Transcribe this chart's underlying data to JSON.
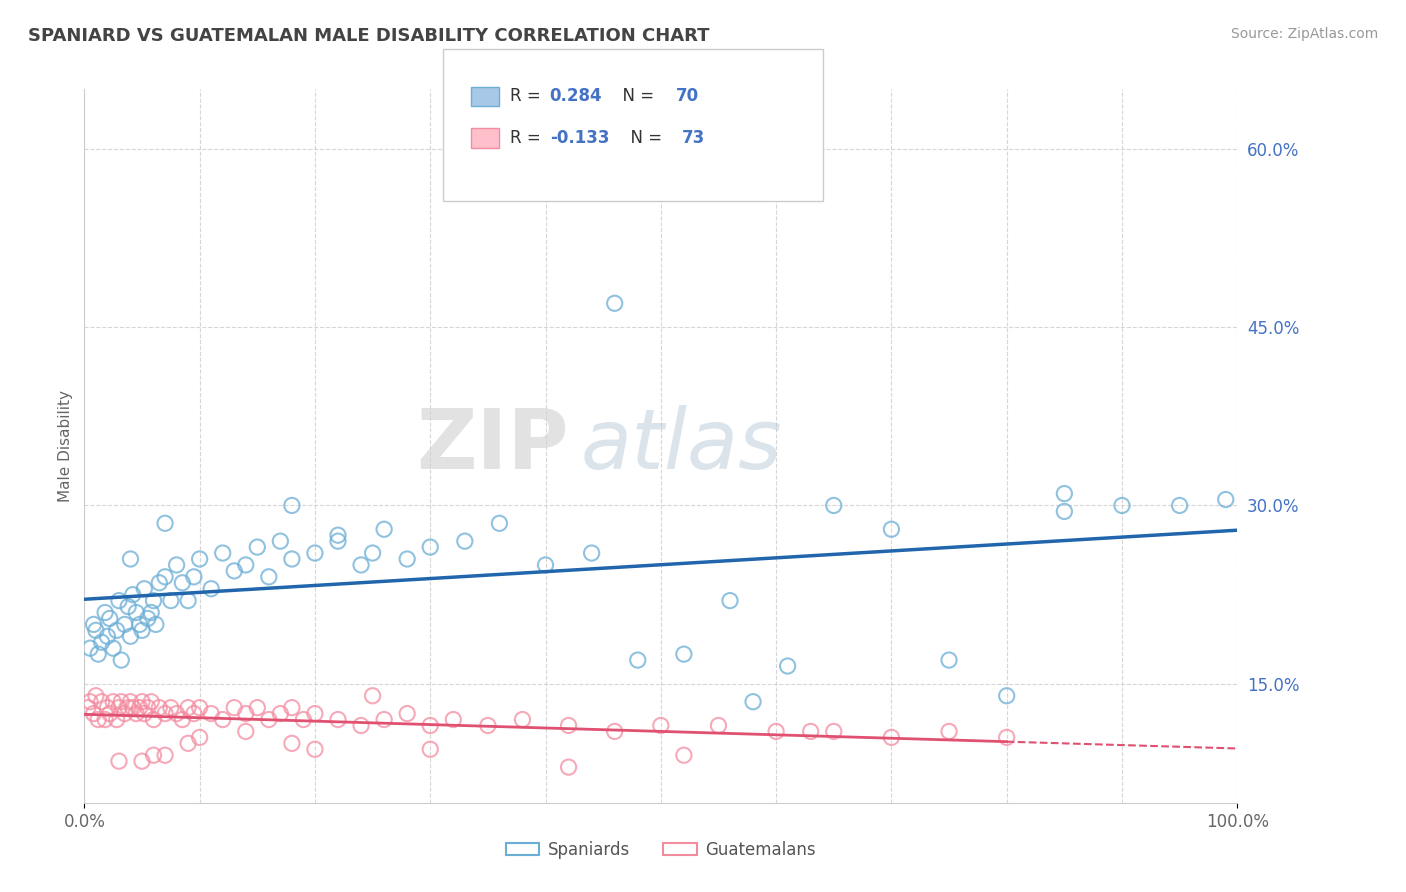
{
  "title": "SPANIARD VS GUATEMALAN MALE DISABILITY CORRELATION CHART",
  "source": "Source: ZipAtlas.com",
  "xmin": 0.0,
  "xmax": 100.0,
  "ymin": 5.0,
  "ymax": 65.0,
  "spaniards_color": "#a8c8e8",
  "spaniards_edge_color": "#6baed6",
  "guatemalans_color": "#ffc0cb",
  "guatemalans_edge_color": "#f48ca0",
  "spaniards_line_color": "#2166ac",
  "guatemalans_line_color": "#e05070",
  "R_spaniards": 0.284,
  "N_spaniards": 70,
  "R_guatemalans": -0.133,
  "N_guatemalans": 73,
  "legend_label_spaniards": "Spaniards",
  "legend_label_guatemalans": "Guatemalans",
  "watermark_zip": "ZIP",
  "watermark_atlas": "atlas",
  "background_color": "#ffffff",
  "grid_color": "#cccccc",
  "title_color": "#444444",
  "axis_label": "Male Disability",
  "ytick_positions": [
    15.0,
    30.0,
    45.0,
    60.0
  ],
  "ytick_labels": [
    "15.0%",
    "30.0%",
    "45.0%",
    "60.0%"
  ],
  "xtick_positions": [
    0.0,
    100.0
  ],
  "xtick_labels": [
    "0.0%",
    "100.0%"
  ],
  "spaniards_x": [
    0.5,
    0.8,
    1.0,
    1.2,
    1.5,
    1.8,
    2.0,
    2.2,
    2.5,
    2.8,
    3.0,
    3.2,
    3.5,
    3.8,
    4.0,
    4.2,
    4.5,
    4.8,
    5.0,
    5.2,
    5.5,
    5.8,
    6.0,
    6.2,
    6.5,
    7.0,
    7.5,
    8.0,
    8.5,
    9.0,
    9.5,
    10.0,
    11.0,
    12.0,
    13.0,
    14.0,
    15.0,
    16.0,
    17.0,
    18.0,
    20.0,
    22.0,
    24.0,
    26.0,
    28.0,
    30.0,
    33.0,
    36.0,
    40.0,
    44.0,
    48.0,
    52.0,
    56.0,
    61.0,
    65.0,
    70.0,
    75.0,
    80.0,
    85.0,
    90.0,
    95.0,
    99.0,
    25.0,
    46.0,
    58.0,
    85.0,
    18.0,
    22.0,
    7.0,
    4.0
  ],
  "spaniards_y": [
    18.0,
    20.0,
    19.5,
    17.5,
    18.5,
    21.0,
    19.0,
    20.5,
    18.0,
    19.5,
    22.0,
    17.0,
    20.0,
    21.5,
    19.0,
    22.5,
    21.0,
    20.0,
    19.5,
    23.0,
    20.5,
    21.0,
    22.0,
    20.0,
    23.5,
    24.0,
    22.0,
    25.0,
    23.5,
    22.0,
    24.0,
    25.5,
    23.0,
    26.0,
    24.5,
    25.0,
    26.5,
    24.0,
    27.0,
    25.5,
    26.0,
    27.5,
    25.0,
    28.0,
    25.5,
    26.5,
    27.0,
    28.5,
    25.0,
    26.0,
    17.0,
    17.5,
    22.0,
    16.5,
    30.0,
    28.0,
    17.0,
    14.0,
    29.5,
    30.0,
    30.0,
    30.5,
    26.0,
    47.0,
    13.5,
    31.0,
    30.0,
    27.0,
    28.5,
    25.5
  ],
  "guatemalans_x": [
    0.3,
    0.5,
    0.8,
    1.0,
    1.2,
    1.5,
    1.8,
    2.0,
    2.2,
    2.5,
    2.8,
    3.0,
    3.2,
    3.5,
    3.8,
    4.0,
    4.2,
    4.5,
    4.8,
    5.0,
    5.2,
    5.5,
    5.8,
    6.0,
    6.5,
    7.0,
    7.5,
    8.0,
    8.5,
    9.0,
    9.5,
    10.0,
    11.0,
    12.0,
    13.0,
    14.0,
    15.0,
    16.0,
    17.0,
    18.0,
    19.0,
    20.0,
    22.0,
    24.0,
    26.0,
    28.0,
    30.0,
    32.0,
    35.0,
    38.0,
    42.0,
    46.0,
    50.0,
    55.0,
    60.0,
    65.0,
    70.0,
    75.0,
    80.0,
    42.0,
    52.0,
    63.0,
    25.0,
    30.0,
    18.0,
    20.0,
    10.0,
    14.0,
    5.0,
    7.0,
    3.0,
    6.0,
    9.0
  ],
  "guatemalans_y": [
    13.0,
    13.5,
    12.5,
    14.0,
    12.0,
    13.5,
    12.0,
    13.0,
    12.5,
    13.5,
    12.0,
    13.0,
    13.5,
    12.5,
    13.0,
    13.5,
    13.0,
    12.5,
    13.0,
    13.5,
    12.5,
    13.0,
    13.5,
    12.0,
    13.0,
    12.5,
    13.0,
    12.5,
    12.0,
    13.0,
    12.5,
    13.0,
    12.5,
    12.0,
    13.0,
    12.5,
    13.0,
    12.0,
    12.5,
    13.0,
    12.0,
    12.5,
    12.0,
    11.5,
    12.0,
    12.5,
    11.5,
    12.0,
    11.5,
    12.0,
    11.5,
    11.0,
    11.5,
    11.5,
    11.0,
    11.0,
    10.5,
    11.0,
    10.5,
    8.0,
    9.0,
    11.0,
    14.0,
    9.5,
    10.0,
    9.5,
    10.5,
    11.0,
    8.5,
    9.0,
    8.5,
    9.0,
    10.0
  ]
}
